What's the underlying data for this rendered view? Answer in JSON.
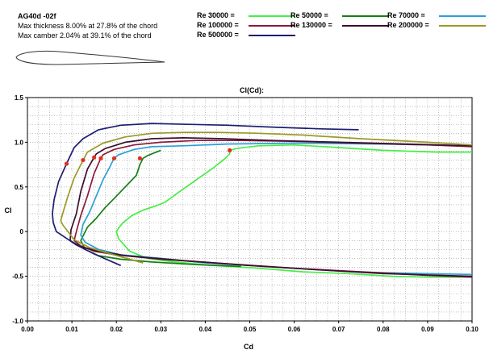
{
  "airfoil": {
    "name": "AG40d -02f",
    "thickness_text": "Max thickness 8.00% at 27.8% of the chord",
    "camber_text": "Max camber 2.04% at 39.1% of the chord"
  },
  "legend": [
    {
      "label": "Re 30000 =",
      "color": "#44ee44"
    },
    {
      "label": "Re 50000 =",
      "color": "#157f15"
    },
    {
      "label": "Re 70000 =",
      "color": "#2aa0d8"
    },
    {
      "label": "Re 100000 =",
      "color": "#8a1a3a"
    },
    {
      "label": "Re 130000 =",
      "color": "#3a0f2e"
    },
    {
      "label": "Re 200000 =",
      "color": "#9a9a25"
    },
    {
      "label": "Re 500000 =",
      "color": "#1d1d70"
    }
  ],
  "chart_data": {
    "type": "line",
    "title": "Cl(Cd):",
    "xlabel": "Cd",
    "ylabel": "Cl",
    "xlim": [
      0.0,
      0.1
    ],
    "ylim": [
      -1.0,
      1.5
    ],
    "grid": true,
    "xticks": [
      "0.00",
      "0.01",
      "0.02",
      "0.03",
      "0.04",
      "0.05",
      "0.06",
      "0.07",
      "0.08",
      "0.09",
      "0.10"
    ],
    "yticks": [
      "1.5",
      "1.0",
      "0.5",
      "0",
      "-0.5",
      "-1.0"
    ],
    "series": [
      {
        "name": "Re 30000",
        "color": "#44ee44",
        "x": [
          0.1,
          0.092,
          0.08,
          0.07,
          0.06,
          0.052,
          0.047,
          0.0455,
          0.0455,
          0.0445,
          0.042,
          0.038,
          0.034,
          0.031,
          0.029,
          0.026,
          0.0235,
          0.0215,
          0.0205,
          0.02,
          0.0205,
          0.023,
          0.027,
          0.033,
          0.042,
          0.052,
          0.062,
          0.072,
          0.082,
          0.09,
          0.1
        ],
        "y": [
          0.89,
          0.89,
          0.91,
          0.94,
          0.97,
          0.96,
          0.93,
          0.91,
          0.87,
          0.82,
          0.72,
          0.58,
          0.44,
          0.33,
          0.29,
          0.24,
          0.18,
          0.1,
          0.04,
          0.0,
          -0.08,
          -0.22,
          -0.3,
          -0.34,
          -0.38,
          -0.41,
          -0.45,
          -0.47,
          -0.5,
          -0.51,
          -0.51
        ],
        "marker": [
          0.0455,
          0.91
        ]
      },
      {
        "name": "Re 50000",
        "color": "#157f15",
        "x": [
          0.03,
          0.0285,
          0.027,
          0.026,
          0.0253,
          0.0245,
          0.022,
          0.0195,
          0.0175,
          0.0155,
          0.0135,
          0.012,
          0.013,
          0.016,
          0.021,
          0.028,
          0.038,
          0.048
        ],
        "y": [
          0.91,
          0.88,
          0.85,
          0.82,
          0.75,
          0.63,
          0.5,
          0.37,
          0.27,
          0.15,
          0.05,
          -0.1,
          -0.2,
          -0.27,
          -0.31,
          -0.34,
          -0.37,
          -0.39
        ],
        "marker": [
          0.0253,
          0.82
        ]
      },
      {
        "name": "Re 70000",
        "color": "#2aa0d8",
        "x": [
          0.1,
          0.08,
          0.06,
          0.045,
          0.035,
          0.028,
          0.024,
          0.0205,
          0.0195,
          0.0185,
          0.017,
          0.0155,
          0.014,
          0.0125,
          0.012,
          0.013,
          0.016,
          0.021,
          0.03,
          0.04,
          0.05,
          0.06,
          0.07,
          0.08,
          0.09,
          0.1
        ],
        "y": [
          0.96,
          0.98,
          0.99,
          0.98,
          0.96,
          0.95,
          0.92,
          0.86,
          0.82,
          0.72,
          0.58,
          0.4,
          0.22,
          0.08,
          -0.04,
          -0.12,
          -0.2,
          -0.26,
          -0.3,
          -0.35,
          -0.38,
          -0.41,
          -0.44,
          -0.46,
          -0.47,
          -0.48
        ],
        "marker": [
          0.0195,
          0.82
        ]
      },
      {
        "name": "Re 100000",
        "color": "#8a1a3a",
        "x": [
          0.1,
          0.09,
          0.075,
          0.06,
          0.048,
          0.038,
          0.03,
          0.024,
          0.0195,
          0.017,
          0.0165,
          0.015,
          0.0135,
          0.012,
          0.011,
          0.0105,
          0.012,
          0.015,
          0.02,
          0.03,
          0.045,
          0.06,
          0.075,
          0.09,
          0.1
        ],
        "y": [
          0.95,
          0.97,
          0.99,
          1.01,
          1.02,
          1.02,
          1.0,
          0.97,
          0.92,
          0.86,
          0.82,
          0.65,
          0.4,
          0.18,
          0.0,
          -0.1,
          -0.16,
          -0.22,
          -0.26,
          -0.31,
          -0.36,
          -0.41,
          -0.45,
          -0.49,
          -0.51
        ],
        "marker": [
          0.0165,
          0.82
        ]
      },
      {
        "name": "Re 130000",
        "color": "#3a0f2e",
        "x": [
          0.1,
          0.085,
          0.07,
          0.055,
          0.044,
          0.035,
          0.028,
          0.022,
          0.0175,
          0.0155,
          0.015,
          0.0135,
          0.012,
          0.011,
          0.0098,
          0.0096,
          0.012,
          0.016,
          0.022,
          0.034,
          0.05,
          0.066,
          0.08,
          0.1
        ],
        "y": [
          0.96,
          0.98,
          1.0,
          1.02,
          1.04,
          1.05,
          1.04,
          1.0,
          0.93,
          0.87,
          0.83,
          0.7,
          0.45,
          0.2,
          0.02,
          -0.1,
          -0.17,
          -0.22,
          -0.27,
          -0.32,
          -0.38,
          -0.43,
          -0.47,
          -0.5
        ],
        "marker": [
          0.015,
          0.83
        ]
      },
      {
        "name": "Re 200000",
        "color": "#9a9a25",
        "x": [
          0.1,
          0.09,
          0.075,
          0.062,
          0.052,
          0.043,
          0.035,
          0.028,
          0.022,
          0.017,
          0.0135,
          0.0125,
          0.0105,
          0.009,
          0.0078,
          0.0075,
          0.008,
          0.0105,
          0.014,
          0.018,
          0.026
        ],
        "y": [
          0.97,
          1.0,
          1.04,
          1.08,
          1.1,
          1.11,
          1.11,
          1.1,
          1.06,
          0.99,
          0.89,
          0.8,
          0.6,
          0.38,
          0.18,
          0.12,
          0.07,
          -0.09,
          -0.18,
          -0.24,
          -0.35
        ],
        "marker": [
          0.0125,
          0.8
        ]
      },
      {
        "name": "Re 500000",
        "color": "#1d1d70",
        "x": [
          0.0745,
          0.066,
          0.055,
          0.045,
          0.036,
          0.028,
          0.021,
          0.016,
          0.0125,
          0.0105,
          0.0088,
          0.007,
          0.006,
          0.0056,
          0.0058,
          0.0065,
          0.008,
          0.011,
          0.015,
          0.021
        ],
        "y": [
          1.14,
          1.15,
          1.17,
          1.19,
          1.2,
          1.21,
          1.19,
          1.14,
          1.04,
          0.94,
          0.76,
          0.56,
          0.36,
          0.2,
          0.1,
          0.0,
          -0.05,
          -0.15,
          -0.25,
          -0.38
        ],
        "marker": [
          0.0088,
          0.76
        ]
      }
    ]
  }
}
